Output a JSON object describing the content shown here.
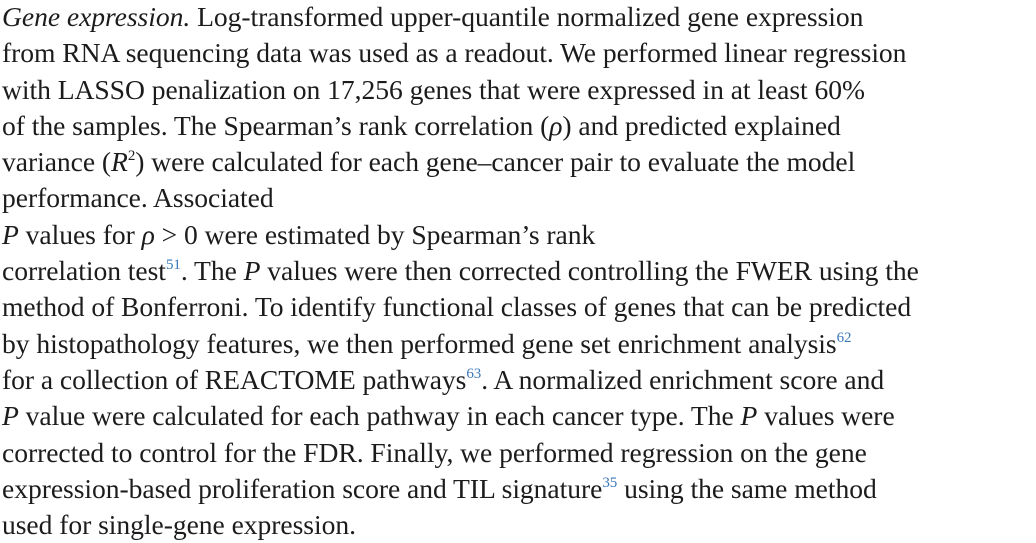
{
  "paragraph": {
    "heading": "Gene expression.",
    "l1_rest": " Log-transformed upper-quantile normalized gene expression",
    "l2": "from RNA sequencing data was used as a readout. We performed linear regression",
    "l3": "with LASSO penalization on 17,256 genes that were expressed in at least 60%",
    "l4a": "of the samples. The Spearman’s rank correlation (",
    "rho": "ρ",
    "l4b": ") and predicted explained",
    "l5a": "variance (",
    "R": "R",
    "sq": "2",
    "l5b": ") were calculated for each gene–cancer pair to evaluate the model",
    "l6": "performance. Associated ",
    "P": "P",
    "l7a": " values for ",
    "l7b": " > 0 were estimated by Spearman’s rank",
    "l8a": "correlation test",
    "ref51": "51",
    "l8b": ". The ",
    "l8c": " values were then corrected controlling the FWER using the",
    "l9": "method of Bonferroni. To identify functional classes of genes that can be predicted",
    "l10a": "by histopathology features, we then performed gene set enrichment analysis",
    "ref62": "62",
    "l11a": "for a collection of REACTOME pathways",
    "ref63": "63",
    "l11b": ". A normalized enrichment score and",
    "l12a": " value were calculated for each pathway in each cancer type. The ",
    "l12b": " values were",
    "l13": "corrected to control for the FDR. Finally, we performed regression on the gene",
    "l14a": "expression-based proliferation score and TIL signature",
    "ref35": "35",
    "l14b": " using the same method",
    "l15": "used for single-gene expression."
  },
  "colors": {
    "text": "#1c1c1c",
    "reference_link": "#3b78b8",
    "background": "#ffffff"
  }
}
